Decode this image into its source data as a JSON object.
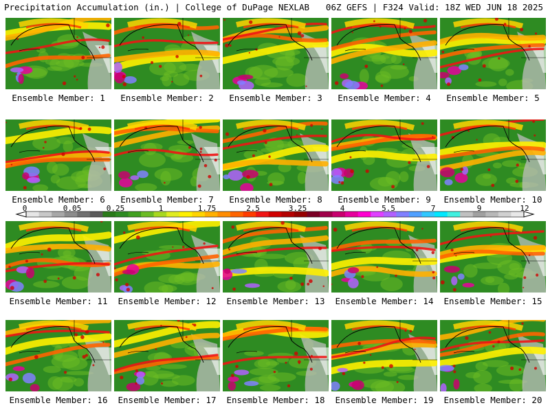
{
  "header": {
    "title": "Precipitation Accumulation (in.) | College of DuPage NEXLAB",
    "run_info": "06Z GEFS | F324 Valid: 18Z WED JUN 18 2025"
  },
  "members": [
    {
      "label": "Ensemble Member: 1"
    },
    {
      "label": "Ensemble Member: 2"
    },
    {
      "label": "Ensemble Member: 3"
    },
    {
      "label": "Ensemble Member: 4"
    },
    {
      "label": "Ensemble Member: 5"
    },
    {
      "label": "Ensemble Member: 6"
    },
    {
      "label": "Ensemble Member: 7"
    },
    {
      "label": "Ensemble Member: 8"
    },
    {
      "label": "Ensemble Member: 9"
    },
    {
      "label": "Ensemble Member: 10"
    },
    {
      "label": "Ensemble Member: 11"
    },
    {
      "label": "Ensemble Member: 12"
    },
    {
      "label": "Ensemble Member: 13"
    },
    {
      "label": "Ensemble Member: 14"
    },
    {
      "label": "Ensemble Member: 15"
    },
    {
      "label": "Ensemble Member: 16"
    },
    {
      "label": "Ensemble Member: 17"
    },
    {
      "label": "Ensemble Member: 18"
    },
    {
      "label": "Ensemble Member: 19"
    },
    {
      "label": "Ensemble Member: 20"
    }
  ],
  "colorbar": {
    "ticks": [
      "0",
      "0.05",
      "0.25",
      "1",
      "1.75",
      "2.5",
      "3.25",
      "4",
      "5.5",
      "7",
      "9",
      "12"
    ],
    "colors": [
      "#e6e6e6",
      "#c8c8c8",
      "#a8a8a8",
      "#8c8c8c",
      "#707070",
      "#5a5a5a",
      "#2a7a1a",
      "#2e8b22",
      "#40a020",
      "#6cbc24",
      "#a8d820",
      "#e0ec20",
      "#fff000",
      "#ffd400",
      "#ffb000",
      "#ff8c00",
      "#ff6400",
      "#ff3c00",
      "#f01414",
      "#d00000",
      "#b40000",
      "#960000",
      "#7a0024",
      "#a0004a",
      "#c8006e",
      "#e6009c",
      "#ff00d0",
      "#e040ff",
      "#b060ff",
      "#8080ff",
      "#50a0ff",
      "#30c8ff",
      "#00e8ff",
      "#40f0e0",
      "#c0c0c0",
      "#a0a0a0",
      "#b8b8b8",
      "#d0d0d0",
      "#e8e8e8"
    ]
  }
}
